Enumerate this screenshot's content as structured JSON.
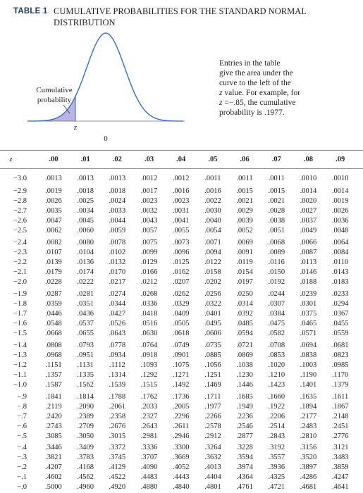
{
  "title": {
    "label": "TABLE 1",
    "text": "CUMULATIVE PROBABILITIES FOR THE STANDARD NORMAL DISTRIBUTION",
    "color": "#1d3a72"
  },
  "figure": {
    "area_label": "Cumulative probability",
    "z_label": "z",
    "zero_label": "0",
    "curve_color": "#2d6fd6",
    "shade_color": "#bab3e3"
  },
  "note": {
    "lines": [
      {
        "text": "Entries in the table"
      },
      {
        "text": "give the area under the"
      },
      {
        "text": "curve to the left of the"
      },
      {
        "var": "z",
        "text": "value. For example, for"
      },
      {
        "var": "z",
        "text": "=−.85, the cumulative"
      },
      {
        "text": "probability is .1977."
      }
    ]
  },
  "table": {
    "header": {
      "z": "z",
      "cols": [
        ".00",
        ".01",
        ".02",
        ".03",
        ".04",
        ".05",
        ".06",
        ".07",
        ".08",
        ".09"
      ]
    },
    "groups": [
      {
        "rows": [
          {
            "z": "−3.0",
            "values": [
              ".0013",
              ".0013",
              ".0013",
              ".0012",
              ".0012",
              ".0011",
              ".0011",
              ".0011",
              ".0010",
              ".0010"
            ]
          }
        ]
      },
      {
        "rows": [
          {
            "z": "−2.9",
            "values": [
              ".0019",
              ".0018",
              ".0018",
              ".0017",
              ".0016",
              ".0016",
              ".0015",
              ".0015",
              ".0014",
              ".0014"
            ]
          },
          {
            "z": "−2.8",
            "values": [
              ".0026",
              ".0025",
              ".0024",
              ".0023",
              ".0023",
              ".0022",
              ".0021",
              ".0021",
              ".0020",
              ".0019"
            ]
          },
          {
            "z": "−2.7",
            "values": [
              ".0035",
              ".0034",
              ".0033",
              ".0032",
              ".0031",
              ".0030",
              ".0029",
              ".0028",
              ".0027",
              ".0026"
            ]
          },
          {
            "z": "−2.6",
            "values": [
              ".0047",
              ".0045",
              ".0044",
              ".0043",
              ".0041",
              ".0040",
              ".0039",
              ".0038",
              ".0037",
              ".0036"
            ]
          },
          {
            "z": "−2.5",
            "values": [
              ".0062",
              ".0060",
              ".0059",
              ".0057",
              ".0055",
              ".0054",
              ".0052",
              ".0051",
              ".0049",
              ".0048"
            ]
          }
        ]
      },
      {
        "rows": [
          {
            "z": "−2.4",
            "values": [
              ".0082",
              ".0080",
              ".0078",
              ".0075",
              ".0073",
              ".0071",
              ".0069",
              ".0068",
              ".0066",
              ".0064"
            ]
          },
          {
            "z": "−2.3",
            "values": [
              ".0107",
              ".0104",
              ".0102",
              ".0099",
              ".0096",
              ".0094",
              ".0091",
              ".0089",
              ".0087",
              ".0084"
            ]
          },
          {
            "z": "−2.2",
            "values": [
              ".0139",
              ".0136",
              ".0132",
              ".0129",
              ".0125",
              ".0122",
              ".0119",
              ".0116",
              ".0113",
              ".0110"
            ]
          },
          {
            "z": "−2.1",
            "values": [
              ".0179",
              ".0174",
              ".0170",
              ".0166",
              ".0162",
              ".0158",
              ".0154",
              ".0150",
              ".0146",
              ".0143"
            ]
          },
          {
            "z": "−2.0",
            "values": [
              ".0228",
              ".0222",
              ".0217",
              ".0212",
              ".0207",
              ".0202",
              ".0197",
              ".0192",
              ".0188",
              ".0183"
            ]
          }
        ]
      },
      {
        "rows": [
          {
            "z": "−1.9",
            "values": [
              ".0287",
              ".0281",
              ".0274",
              ".0268",
              ".0262",
              ".0256",
              ".0250",
              ".0244",
              ".0239",
              ".0233"
            ]
          },
          {
            "z": "−1.8",
            "values": [
              ".0359",
              ".0351",
              ".0344",
              ".0336",
              ".0329",
              ".0322",
              ".0314",
              ".0307",
              ".0301",
              ".0294"
            ]
          },
          {
            "z": "−1.7",
            "values": [
              ".0446",
              ".0436",
              ".0427",
              ".0418",
              ".0409",
              ".0401",
              ".0392",
              ".0384",
              ".0375",
              ".0367"
            ]
          },
          {
            "z": "−1.6",
            "values": [
              ".0548",
              ".0537",
              ".0526",
              ".0516",
              ".0505",
              ".0495",
              ".0485",
              ".0475",
              ".0465",
              ".0455"
            ]
          },
          {
            "z": "−1.5",
            "values": [
              ".0668",
              ".0655",
              ".0643",
              ".0630",
              ".0618",
              ".0606",
              ".0594",
              ".0582",
              ".0571",
              ".0559"
            ]
          }
        ]
      },
      {
        "rows": [
          {
            "z": "−1.4",
            "values": [
              ".0808",
              ".0793",
              ".0778",
              ".0764",
              ".0749",
              ".0735",
              ".0721",
              ".0708",
              ".0694",
              ".0681"
            ]
          },
          {
            "z": "−1.3",
            "values": [
              ".0968",
              ".0951",
              ".0934",
              ".0918",
              ".0901",
              ".0885",
              ".0869",
              ".0853",
              ".0838",
              ".0823"
            ]
          },
          {
            "z": "−1.2",
            "values": [
              ".1151",
              ".1131",
              ".1112",
              ".1093",
              ".1075",
              ".1056",
              ".1038",
              ".1020",
              ".1003",
              ".0985"
            ]
          },
          {
            "z": "−1.1",
            "values": [
              ".1357",
              ".1335",
              ".1314",
              ".1292",
              ".1271",
              ".1251",
              ".1230",
              ".1210",
              ".1190",
              ".1170"
            ]
          },
          {
            "z": "−1.0",
            "values": [
              ".1587",
              ".1562",
              ".1539",
              ".1515",
              ".1492",
              ".1469",
              ".1446",
              ".1423",
              ".1401",
              ".1379"
            ]
          }
        ]
      },
      {
        "rows": [
          {
            "z": "−.9",
            "values": [
              ".1841",
              ".1814",
              ".1788",
              ".1762",
              ".1736",
              ".1711",
              ".1685",
              ".1660",
              ".1635",
              ".1611"
            ]
          },
          {
            "z": "−.8",
            "values": [
              ".2119",
              ".2090",
              ".2061",
              ".2033",
              ".2005",
              ".1977",
              ".1949",
              ".1922",
              ".1894",
              ".1867"
            ]
          },
          {
            "z": "−.7",
            "values": [
              ".2420",
              ".2389",
              ".2358",
              ".2327",
              ".2296",
              ".2266",
              ".2236",
              ".2206",
              ".2177",
              ".2148"
            ]
          },
          {
            "z": "−.6",
            "values": [
              ".2743",
              ".2709",
              ".2676",
              ".2643",
              ".2611",
              ".2578",
              ".2546",
              ".2514",
              ".2483",
              ".2451"
            ]
          },
          {
            "z": "−.5",
            "values": [
              ".3085",
              ".3050",
              ".3015",
              ".2981",
              ".2946",
              ".2912",
              ".2877",
              ".2843",
              ".2810",
              ".2776"
            ]
          }
        ]
      },
      {
        "rows": [
          {
            "z": "−.4",
            "values": [
              ".3446",
              ".3409",
              ".3372",
              ".3336",
              ".3300",
              ".3264",
              ".3228",
              ".3192",
              ".3156",
              ".3121"
            ]
          },
          {
            "z": "−.3",
            "values": [
              ".3821",
              ".3783",
              ".3745",
              ".3707",
              ".3669",
              ".3632",
              ".3594",
              ".3557",
              ".3520",
              ".3483"
            ]
          },
          {
            "z": "−.2",
            "values": [
              ".4207",
              ".4168",
              ".4129",
              ".4090",
              ".4052",
              ".4013",
              ".3974",
              ".3936",
              ".3897",
              ".3859"
            ]
          },
          {
            "z": "−.1",
            "values": [
              ".4602",
              ".4562",
              ".4522",
              ".4483",
              ".4443",
              ".4404",
              ".4364",
              ".4325",
              ".4286",
              ".4247"
            ]
          },
          {
            "z": "−.0",
            "values": [
              ".5000",
              ".4960",
              ".4920",
              ".4880",
              ".4840",
              ".4801",
              ".4761",
              ".4721",
              ".4681",
              ".4641"
            ]
          }
        ]
      }
    ]
  }
}
